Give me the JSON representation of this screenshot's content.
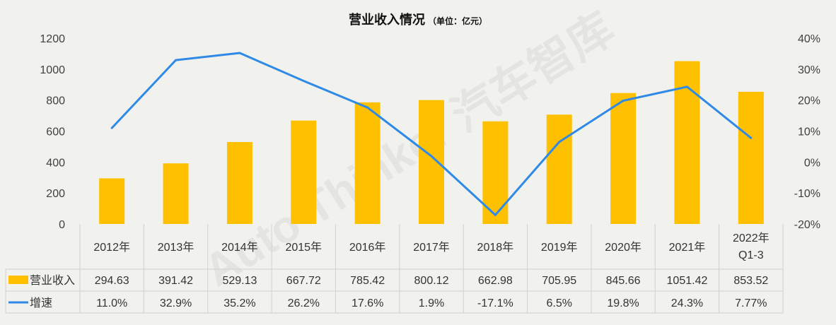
{
  "title": "营业收入情况",
  "subtitle": "（单位：亿元）",
  "colors": {
    "bar": "#ffc000",
    "line": "#2e8ae6"
  },
  "chart_data": {
    "type": "bar",
    "categories": [
      "2012年",
      "2013年",
      "2014年",
      "2015年",
      "2016年",
      "2017年",
      "2018年",
      "2019年",
      "2020年",
      "2021年",
      "2022年Q1-3"
    ],
    "series": [
      {
        "name": "营业收入",
        "kind": "bar",
        "axis": "left",
        "values": [
          294.63,
          391.42,
          529.13,
          667.72,
          785.42,
          800.12,
          662.98,
          705.95,
          845.66,
          1051.42,
          853.52
        ],
        "labels": [
          "294.63",
          "391.42",
          "529.13",
          "667.72",
          "785.42",
          "800.12",
          "662.98",
          "705.95",
          "845.66",
          "1051.42",
          "853.52"
        ]
      },
      {
        "name": "增速",
        "kind": "line",
        "axis": "right",
        "values": [
          11.0,
          32.9,
          35.2,
          26.2,
          17.6,
          1.9,
          -17.1,
          6.5,
          19.8,
          24.3,
          7.77
        ],
        "labels": [
          "11.0%",
          "32.9%",
          "35.2%",
          "26.2%",
          "17.6%",
          "1.9%",
          "-17.1%",
          "6.5%",
          "19.8%",
          "24.3%",
          "7.77%"
        ]
      }
    ],
    "y_left": {
      "min": 0,
      "max": 1200,
      "ticks": [
        "0",
        "200",
        "400",
        "600",
        "800",
        "1000",
        "1200"
      ]
    },
    "y_right": {
      "min": -20,
      "max": 40,
      "ticks": [
        "-20%",
        "-10%",
        "0%",
        "10%",
        "20%",
        "30%",
        "40%"
      ]
    },
    "grid": false,
    "legend": "data-table-left",
    "watermark": "Auto Thinker 汽车智库"
  }
}
